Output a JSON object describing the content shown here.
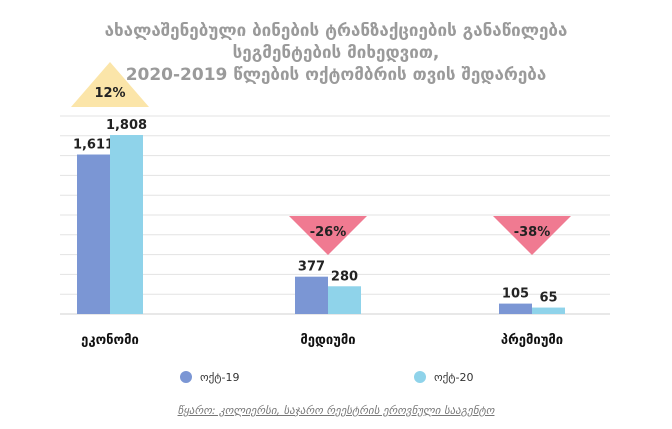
{
  "title_lines": [
    "ახალაშენებული ბინების ტრანზაქციების განაწილება",
    "სეგმენტების მიხედვით,",
    "2020-2019 წლების ოქტომბრის თვის შედარება"
  ],
  "source": "წყარო: კოლიერსი, საჯარო რეესტრის ეროვნული სააგენტო",
  "colors": {
    "series1": "#7b96d4",
    "series2": "#8fd3ea",
    "up_marker": "#fbe5a9",
    "down_marker": "#f07a91",
    "grid": "#e3e3e3",
    "title": "#9a9a9a"
  },
  "chart_data": {
    "type": "bar",
    "categories": [
      "ეკონომი",
      "მედიუმი",
      "პრემიუმი"
    ],
    "series": [
      {
        "name": "ოქტ-19",
        "values": [
          1611,
          377,
          105
        ],
        "labels": [
          "1,611",
          "377",
          "105"
        ]
      },
      {
        "name": "ოქტ-20",
        "values": [
          1808,
          280,
          65
        ],
        "labels": [
          "1,808",
          "280",
          "65"
        ]
      }
    ],
    "changes": [
      {
        "label": "12%",
        "direction": "up"
      },
      {
        "label": "-26%",
        "direction": "down"
      },
      {
        "label": "-38%",
        "direction": "down"
      }
    ],
    "ylim": [
      0,
      2000
    ],
    "grid": true,
    "legend_position": "bottom"
  }
}
